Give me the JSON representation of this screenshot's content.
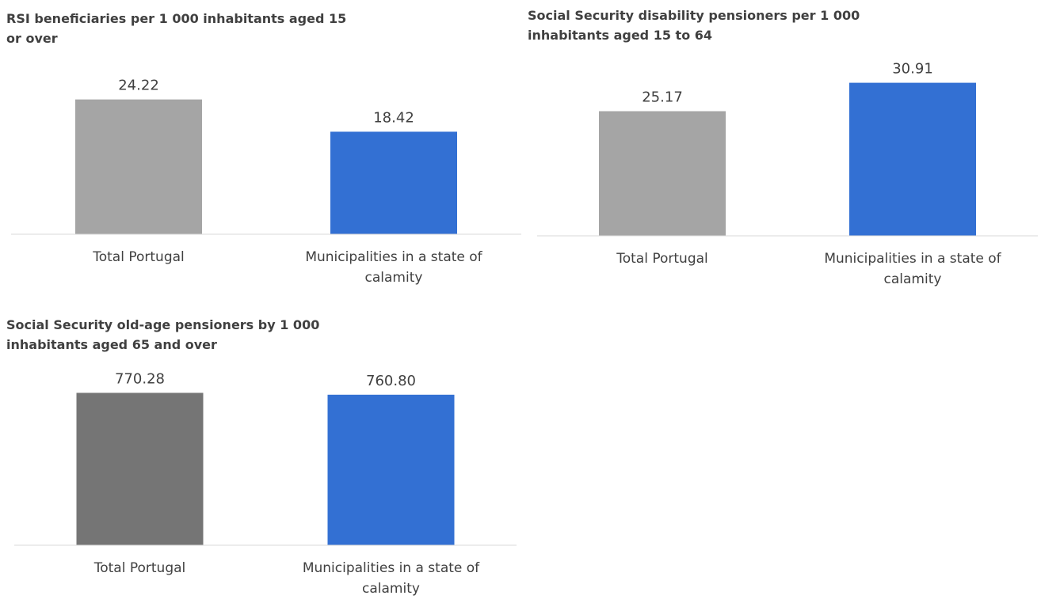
{
  "chart_data": [
    {
      "type": "bar",
      "title_lines": [
        "RSI beneficiaries per 1 000 inhabitants aged 15",
        "or over"
      ],
      "categories": [
        [
          "Total Portugal"
        ],
        [
          "Municipalities in a state of",
          "calamity"
        ]
      ],
      "values": [
        24.22,
        18.42
      ],
      "value_labels": [
        "24.22",
        "18.42"
      ],
      "colors": [
        "#a5a5a5",
        "#3370d3"
      ],
      "ylim": [
        0,
        30
      ],
      "grid": false,
      "legend": "none"
    },
    {
      "type": "bar",
      "title_lines": [
        "Social Security disability pensioners per 1 000",
        "inhabitants aged 15 to 64"
      ],
      "categories": [
        [
          "Total Portugal"
        ],
        [
          "Municipalities in a state of",
          "calamity"
        ]
      ],
      "values": [
        25.17,
        30.91
      ],
      "value_labels": [
        "25.17",
        "30.91"
      ],
      "colors": [
        "#a5a5a5",
        "#3370d3"
      ],
      "ylim": [
        0,
        35
      ],
      "grid": false,
      "legend": "none"
    },
    {
      "type": "bar",
      "title_lines": [
        "Social Security old-age pensioners by 1 000",
        "inhabitants aged 65 and over"
      ],
      "categories": [
        [
          "Total Portugal"
        ],
        [
          "Municipalities in a state of",
          "calamity"
        ]
      ],
      "values": [
        770.28,
        760.8
      ],
      "value_labels": [
        "770.28",
        "760.80"
      ],
      "colors": [
        "#757575",
        "#3370d3"
      ],
      "ylim": [
        0,
        880
      ],
      "grid": false,
      "legend": "none"
    }
  ]
}
